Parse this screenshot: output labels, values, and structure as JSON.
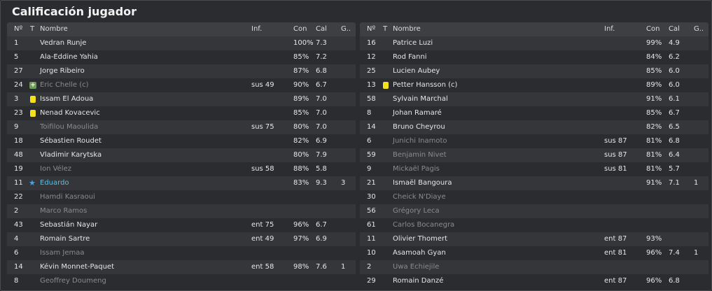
{
  "title": "Calificación jugador",
  "columns": {
    "no": "Nº",
    "t": "T",
    "name": "Nombre",
    "inf": "Inf.",
    "con": "Con",
    "cal": "Cal",
    "g": "G.."
  },
  "left": [
    {
      "no": "1",
      "name": "Vedran Runje",
      "inf": "",
      "con": "100%",
      "cal": "7.3",
      "g": "",
      "icon": "",
      "style": "normal"
    },
    {
      "no": "5",
      "name": "Ala-Eddine Yahia",
      "inf": "",
      "con": "85%",
      "cal": "7.2",
      "g": "",
      "icon": "",
      "style": "normal"
    },
    {
      "no": "27",
      "name": "Jorge Ribeiro",
      "inf": "",
      "con": "87%",
      "cal": "6.8",
      "g": "",
      "icon": "",
      "style": "normal"
    },
    {
      "no": "24",
      "name": "Eric Chelle (c)",
      "inf": "sus 49",
      "con": "90%",
      "cal": "6.7",
      "g": "",
      "icon": "plus",
      "style": "dim"
    },
    {
      "no": "3",
      "name": "Issam El Adoua",
      "inf": "",
      "con": "89%",
      "cal": "7.0",
      "g": "",
      "icon": "yellow",
      "style": "normal"
    },
    {
      "no": "23",
      "name": "Nenad Kovacevic",
      "inf": "",
      "con": "85%",
      "cal": "7.0",
      "g": "",
      "icon": "yellow",
      "style": "normal"
    },
    {
      "no": "9",
      "name": "Toifilou Maoulida",
      "inf": "sus 75",
      "con": "80%",
      "cal": "7.0",
      "g": "",
      "icon": "",
      "style": "dim"
    },
    {
      "no": "18",
      "name": "Sébastien Roudet",
      "inf": "",
      "con": "82%",
      "cal": "6.9",
      "g": "",
      "icon": "",
      "style": "normal"
    },
    {
      "no": "48",
      "name": "Vladimir Karytska",
      "inf": "",
      "con": "80%",
      "cal": "7.9",
      "g": "",
      "icon": "",
      "style": "normal"
    },
    {
      "no": "19",
      "name": "Ion Vélez",
      "inf": "sus 58",
      "con": "88%",
      "cal": "5.8",
      "g": "",
      "icon": "",
      "style": "dim"
    },
    {
      "no": "11",
      "name": "Eduardo",
      "inf": "",
      "con": "83%",
      "cal": "9.3",
      "g": "3",
      "icon": "star",
      "style": "star"
    },
    {
      "no": "22",
      "name": "Hamdi Kasraoui",
      "inf": "",
      "con": "",
      "cal": "",
      "g": "",
      "icon": "",
      "style": "dim"
    },
    {
      "no": "2",
      "name": "Marco Ramos",
      "inf": "",
      "con": "",
      "cal": "",
      "g": "",
      "icon": "",
      "style": "dim"
    },
    {
      "no": "43",
      "name": "Sebastián Nayar",
      "inf": "ent 75",
      "con": "96%",
      "cal": "6.7",
      "g": "",
      "icon": "",
      "style": "normal"
    },
    {
      "no": "4",
      "name": "Romain Sartre",
      "inf": "ent 49",
      "con": "97%",
      "cal": "6.9",
      "g": "",
      "icon": "",
      "style": "normal"
    },
    {
      "no": "6",
      "name": "Issam Jemaa",
      "inf": "",
      "con": "",
      "cal": "",
      "g": "",
      "icon": "",
      "style": "dim"
    },
    {
      "no": "14",
      "name": "Kévin Monnet-Paquet",
      "inf": "ent 58",
      "con": "98%",
      "cal": "7.6",
      "g": "1",
      "icon": "",
      "style": "normal"
    },
    {
      "no": "8",
      "name": "Geoffrey Doumeng",
      "inf": "",
      "con": "",
      "cal": "",
      "g": "",
      "icon": "",
      "style": "dim"
    }
  ],
  "right": [
    {
      "no": "16",
      "name": "Patrice Luzi",
      "inf": "",
      "con": "99%",
      "cal": "4.9",
      "g": "",
      "icon": "",
      "style": "normal"
    },
    {
      "no": "12",
      "name": "Rod Fanni",
      "inf": "",
      "con": "84%",
      "cal": "6.2",
      "g": "",
      "icon": "",
      "style": "normal"
    },
    {
      "no": "25",
      "name": "Lucien Aubey",
      "inf": "",
      "con": "85%",
      "cal": "6.0",
      "g": "",
      "icon": "",
      "style": "normal"
    },
    {
      "no": "13",
      "name": "Petter Hansson (c)",
      "inf": "",
      "con": "89%",
      "cal": "6.0",
      "g": "",
      "icon": "yellow",
      "style": "normal"
    },
    {
      "no": "58",
      "name": "Sylvain Marchal",
      "inf": "",
      "con": "91%",
      "cal": "6.1",
      "g": "",
      "icon": "",
      "style": "normal"
    },
    {
      "no": "8",
      "name": "Johan Ramaré",
      "inf": "",
      "con": "85%",
      "cal": "6.7",
      "g": "",
      "icon": "",
      "style": "normal"
    },
    {
      "no": "14",
      "name": "Bruno Cheyrou",
      "inf": "",
      "con": "82%",
      "cal": "6.5",
      "g": "",
      "icon": "",
      "style": "normal"
    },
    {
      "no": "6",
      "name": "Junichi Inamoto",
      "inf": "sus 87",
      "con": "81%",
      "cal": "6.8",
      "g": "",
      "icon": "",
      "style": "dim"
    },
    {
      "no": "59",
      "name": "Benjamin Nivet",
      "inf": "sus 87",
      "con": "81%",
      "cal": "6.4",
      "g": "",
      "icon": "",
      "style": "dim"
    },
    {
      "no": "9",
      "name": "Mickaël Pagis",
      "inf": "sus 81",
      "con": "81%",
      "cal": "5.7",
      "g": "",
      "icon": "",
      "style": "dim"
    },
    {
      "no": "21",
      "name": "Ismaël Bangoura",
      "inf": "",
      "con": "91%",
      "cal": "7.1",
      "g": "1",
      "icon": "",
      "style": "normal"
    },
    {
      "no": "30",
      "name": "Cheick N'Diaye",
      "inf": "",
      "con": "",
      "cal": "",
      "g": "",
      "icon": "",
      "style": "dim"
    },
    {
      "no": "56",
      "name": "Grégory Leca",
      "inf": "",
      "con": "",
      "cal": "",
      "g": "",
      "icon": "",
      "style": "dim"
    },
    {
      "no": "61",
      "name": "Carlos Bocanegra",
      "inf": "",
      "con": "",
      "cal": "",
      "g": "",
      "icon": "",
      "style": "dim"
    },
    {
      "no": "11",
      "name": "Olivier Thomert",
      "inf": "ent 87",
      "con": "93%",
      "cal": "",
      "g": "",
      "icon": "",
      "style": "normal"
    },
    {
      "no": "10",
      "name": "Asamoah Gyan",
      "inf": "ent 81",
      "con": "96%",
      "cal": "7.4",
      "g": "1",
      "icon": "",
      "style": "normal"
    },
    {
      "no": "2",
      "name": "Uwa Echiejile",
      "inf": "",
      "con": "",
      "cal": "",
      "g": "",
      "icon": "",
      "style": "dim"
    },
    {
      "no": "29",
      "name": "Romain Danzé",
      "inf": "ent 87",
      "con": "96%",
      "cal": "6.8",
      "g": "",
      "icon": "",
      "style": "normal"
    }
  ]
}
